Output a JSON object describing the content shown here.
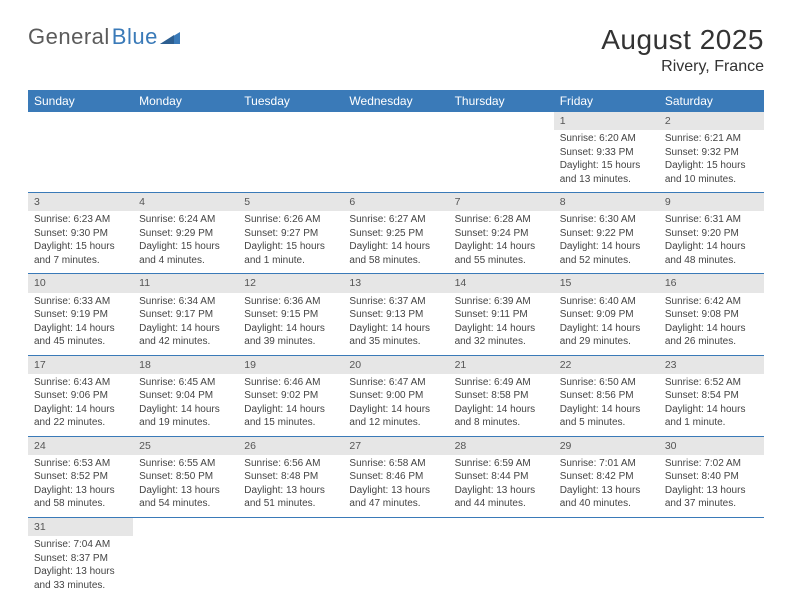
{
  "logo": {
    "text1": "General",
    "text2": "Blue"
  },
  "title": "August 2025",
  "subtitle": "Rivery, France",
  "colors": {
    "header_bg": "#3a7ab8",
    "header_text": "#ffffff",
    "daynum_bg": "#e6e6e6",
    "rule": "#3a7ab8",
    "text": "#444444"
  },
  "week_headers": [
    "Sunday",
    "Monday",
    "Tuesday",
    "Wednesday",
    "Thursday",
    "Friday",
    "Saturday"
  ],
  "weeks": [
    [
      null,
      null,
      null,
      null,
      null,
      {
        "n": "1",
        "sunrise": "6:20 AM",
        "sunset": "9:33 PM",
        "daylight": "15 hours and 13 minutes."
      },
      {
        "n": "2",
        "sunrise": "6:21 AM",
        "sunset": "9:32 PM",
        "daylight": "15 hours and 10 minutes."
      }
    ],
    [
      {
        "n": "3",
        "sunrise": "6:23 AM",
        "sunset": "9:30 PM",
        "daylight": "15 hours and 7 minutes."
      },
      {
        "n": "4",
        "sunrise": "6:24 AM",
        "sunset": "9:29 PM",
        "daylight": "15 hours and 4 minutes."
      },
      {
        "n": "5",
        "sunrise": "6:26 AM",
        "sunset": "9:27 PM",
        "daylight": "15 hours and 1 minute."
      },
      {
        "n": "6",
        "sunrise": "6:27 AM",
        "sunset": "9:25 PM",
        "daylight": "14 hours and 58 minutes."
      },
      {
        "n": "7",
        "sunrise": "6:28 AM",
        "sunset": "9:24 PM",
        "daylight": "14 hours and 55 minutes."
      },
      {
        "n": "8",
        "sunrise": "6:30 AM",
        "sunset": "9:22 PM",
        "daylight": "14 hours and 52 minutes."
      },
      {
        "n": "9",
        "sunrise": "6:31 AM",
        "sunset": "9:20 PM",
        "daylight": "14 hours and 48 minutes."
      }
    ],
    [
      {
        "n": "10",
        "sunrise": "6:33 AM",
        "sunset": "9:19 PM",
        "daylight": "14 hours and 45 minutes."
      },
      {
        "n": "11",
        "sunrise": "6:34 AM",
        "sunset": "9:17 PM",
        "daylight": "14 hours and 42 minutes."
      },
      {
        "n": "12",
        "sunrise": "6:36 AM",
        "sunset": "9:15 PM",
        "daylight": "14 hours and 39 minutes."
      },
      {
        "n": "13",
        "sunrise": "6:37 AM",
        "sunset": "9:13 PM",
        "daylight": "14 hours and 35 minutes."
      },
      {
        "n": "14",
        "sunrise": "6:39 AM",
        "sunset": "9:11 PM",
        "daylight": "14 hours and 32 minutes."
      },
      {
        "n": "15",
        "sunrise": "6:40 AM",
        "sunset": "9:09 PM",
        "daylight": "14 hours and 29 minutes."
      },
      {
        "n": "16",
        "sunrise": "6:42 AM",
        "sunset": "9:08 PM",
        "daylight": "14 hours and 26 minutes."
      }
    ],
    [
      {
        "n": "17",
        "sunrise": "6:43 AM",
        "sunset": "9:06 PM",
        "daylight": "14 hours and 22 minutes."
      },
      {
        "n": "18",
        "sunrise": "6:45 AM",
        "sunset": "9:04 PM",
        "daylight": "14 hours and 19 minutes."
      },
      {
        "n": "19",
        "sunrise": "6:46 AM",
        "sunset": "9:02 PM",
        "daylight": "14 hours and 15 minutes."
      },
      {
        "n": "20",
        "sunrise": "6:47 AM",
        "sunset": "9:00 PM",
        "daylight": "14 hours and 12 minutes."
      },
      {
        "n": "21",
        "sunrise": "6:49 AM",
        "sunset": "8:58 PM",
        "daylight": "14 hours and 8 minutes."
      },
      {
        "n": "22",
        "sunrise": "6:50 AM",
        "sunset": "8:56 PM",
        "daylight": "14 hours and 5 minutes."
      },
      {
        "n": "23",
        "sunrise": "6:52 AM",
        "sunset": "8:54 PM",
        "daylight": "14 hours and 1 minute."
      }
    ],
    [
      {
        "n": "24",
        "sunrise": "6:53 AM",
        "sunset": "8:52 PM",
        "daylight": "13 hours and 58 minutes."
      },
      {
        "n": "25",
        "sunrise": "6:55 AM",
        "sunset": "8:50 PM",
        "daylight": "13 hours and 54 minutes."
      },
      {
        "n": "26",
        "sunrise": "6:56 AM",
        "sunset": "8:48 PM",
        "daylight": "13 hours and 51 minutes."
      },
      {
        "n": "27",
        "sunrise": "6:58 AM",
        "sunset": "8:46 PM",
        "daylight": "13 hours and 47 minutes."
      },
      {
        "n": "28",
        "sunrise": "6:59 AM",
        "sunset": "8:44 PM",
        "daylight": "13 hours and 44 minutes."
      },
      {
        "n": "29",
        "sunrise": "7:01 AM",
        "sunset": "8:42 PM",
        "daylight": "13 hours and 40 minutes."
      },
      {
        "n": "30",
        "sunrise": "7:02 AM",
        "sunset": "8:40 PM",
        "daylight": "13 hours and 37 minutes."
      }
    ],
    [
      {
        "n": "31",
        "sunrise": "7:04 AM",
        "sunset": "8:37 PM",
        "daylight": "13 hours and 33 minutes."
      },
      null,
      null,
      null,
      null,
      null,
      null
    ]
  ],
  "labels": {
    "sunrise": "Sunrise: ",
    "sunset": "Sunset: ",
    "daylight": "Daylight: "
  }
}
